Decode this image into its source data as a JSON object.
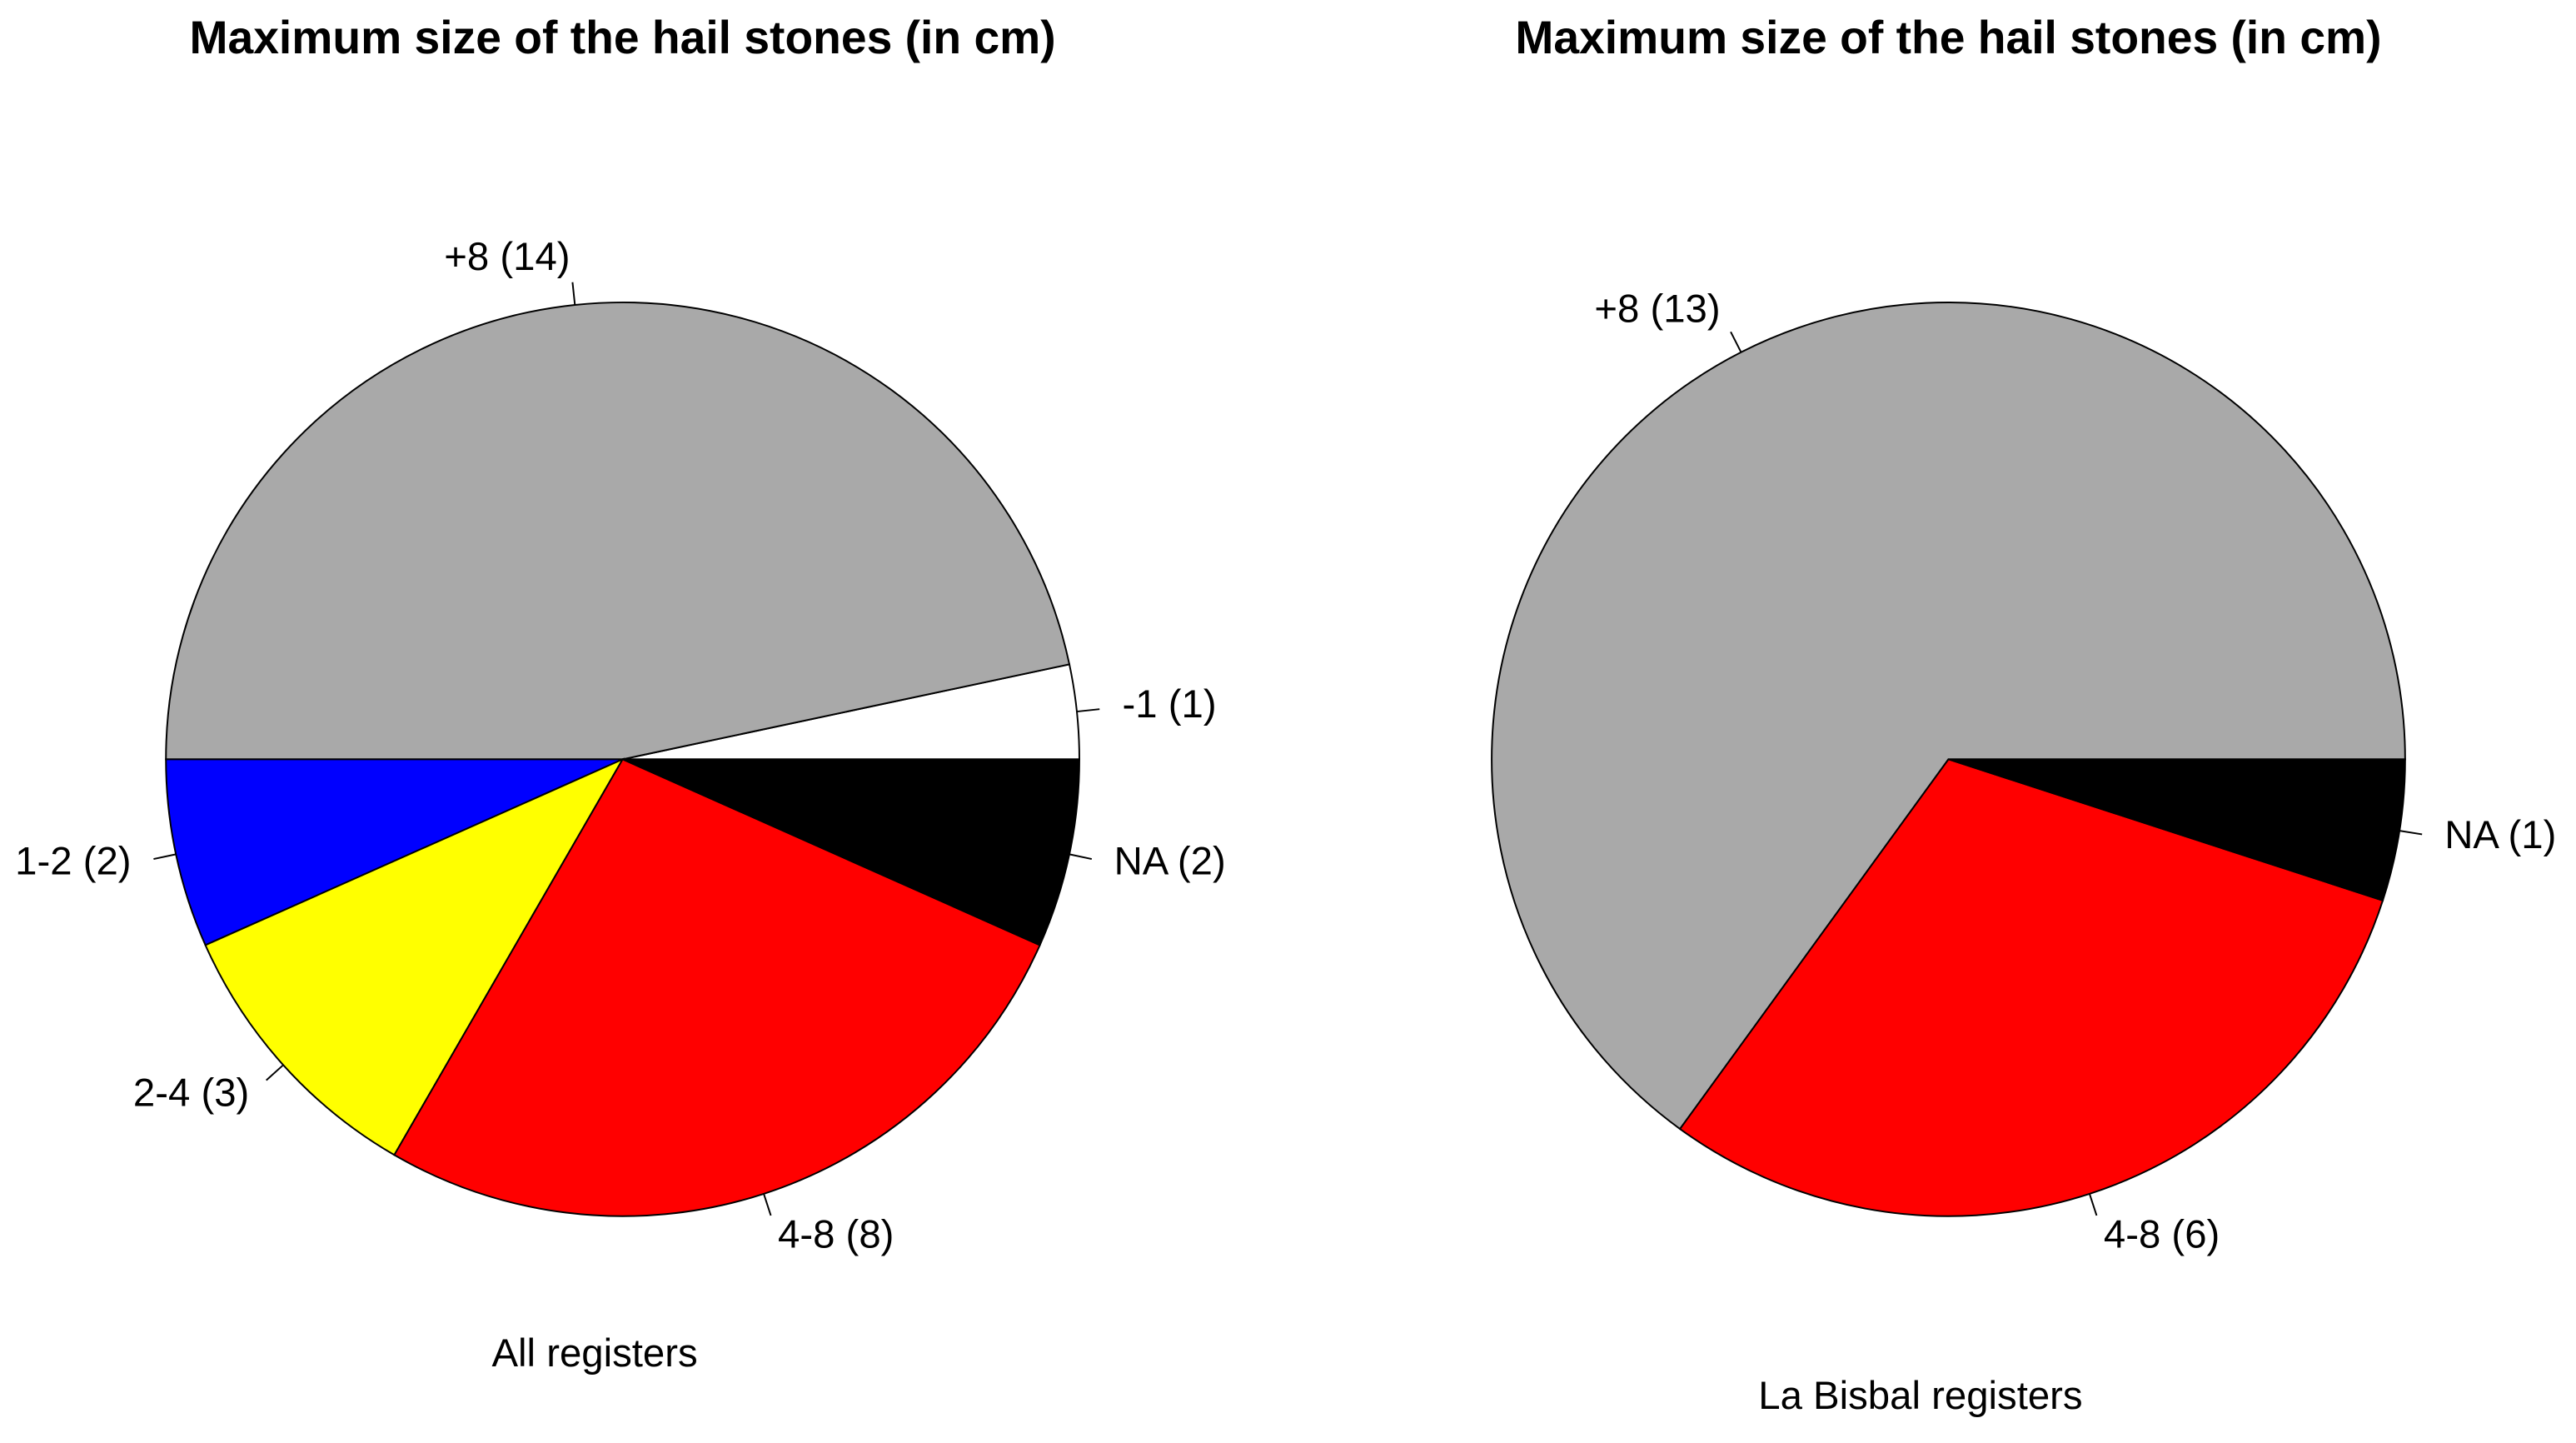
{
  "chart_data": [
    {
      "type": "pie",
      "title": "Maximum size of the hail stones (in cm)",
      "subtitle": "All registers",
      "categories": [
        "-1 (1)",
        "+8 (14)",
        "1-2 (2)",
        "2-4 (3)",
        "4-8 (8)",
        "NA (2)"
      ],
      "values": [
        1,
        14,
        2,
        3,
        8,
        2
      ],
      "colors": [
        "#ffffff",
        "#a9a9a9",
        "#0000ff",
        "#ffff00",
        "#ff0000",
        "#000000"
      ]
    },
    {
      "type": "pie",
      "title": "Maximum size of the hail stones (in cm)",
      "subtitle": "La Bisbal registers",
      "categories": [
        "+8 (13)",
        "4-8 (6)",
        "NA (1)"
      ],
      "values": [
        13,
        6,
        1
      ],
      "colors": [
        "#a9a9a9",
        "#ff0000",
        "#000000"
      ]
    }
  ]
}
